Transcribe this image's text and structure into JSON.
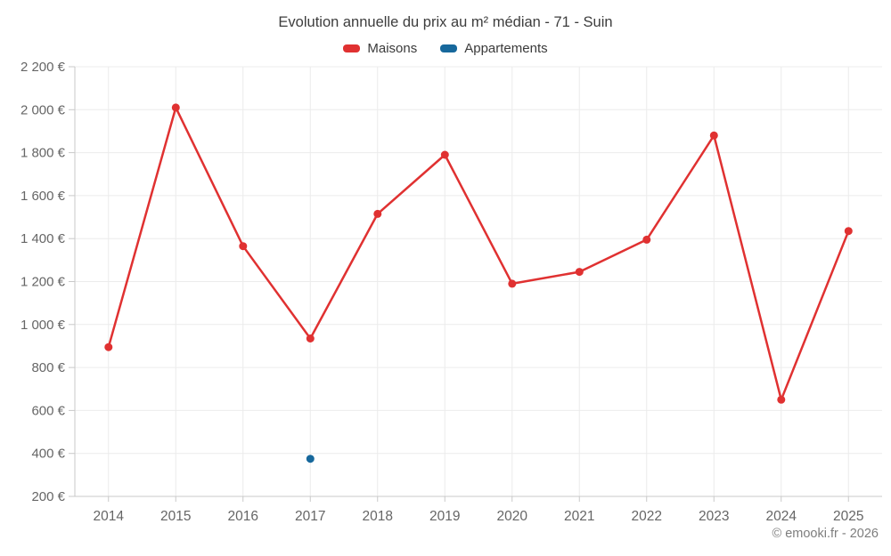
{
  "chart": {
    "title": "Evolution annuelle du prix au m² médian - 71 - Suin",
    "attribution": "© emooki.fr - 2026"
  },
  "legend": {
    "items": [
      {
        "label": "Maisons",
        "color": "#e03131"
      },
      {
        "label": "Appartements",
        "color": "#17689c"
      }
    ]
  },
  "chart_data": {
    "type": "line",
    "title": "Evolution annuelle du prix au m² médian - 71 - Suin",
    "xlabel": "",
    "ylabel": "",
    "categories": [
      "2014",
      "2015",
      "2016",
      "2017",
      "2018",
      "2019",
      "2020",
      "2021",
      "2022",
      "2023",
      "2024",
      "2025"
    ],
    "series": [
      {
        "name": "Maisons",
        "color": "#e03131",
        "values": [
          895,
          2010,
          1365,
          935,
          1515,
          1790,
          1190,
          1245,
          1395,
          1880,
          650,
          1435
        ]
      },
      {
        "name": "Appartements",
        "color": "#17689c",
        "values": [
          null,
          null,
          null,
          375,
          null,
          null,
          null,
          null,
          null,
          null,
          null,
          null
        ]
      }
    ],
    "ylim": [
      200,
      2200
    ],
    "y_tick_step": 200,
    "y_tick_labels": [
      "200 €",
      "400 €",
      "600 €",
      "800 €",
      "1 000 €",
      "1 200 €",
      "1 400 €",
      "1 600 €",
      "1 800 €",
      "2 000 €",
      "2 200 €"
    ],
    "grid": true,
    "legend_position": "top",
    "currency": "€"
  },
  "style": {
    "grid_color": "#ececec",
    "axis_color": "#c9c9c9",
    "tick_label_color": "#666666"
  }
}
